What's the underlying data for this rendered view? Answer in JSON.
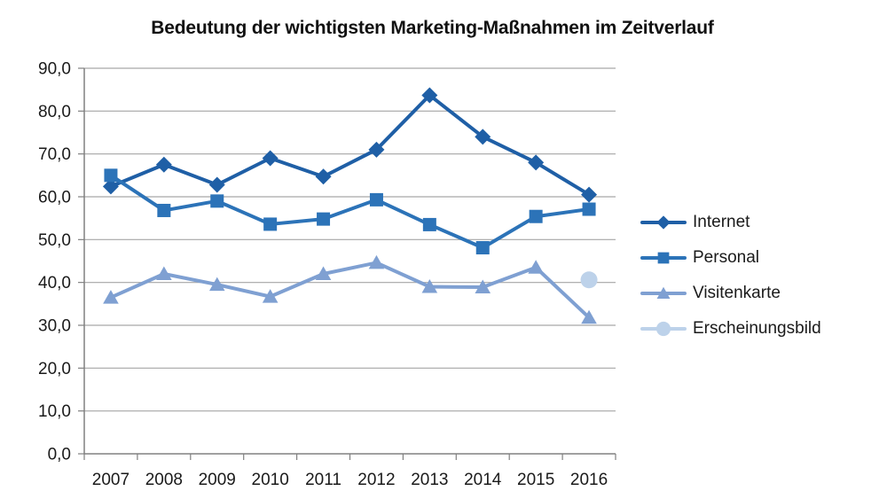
{
  "title": "Bedeutung der wichtigsten Marketing-Maßnahmen im Zeitverlauf",
  "colors": {
    "grid": "#A6A6A6",
    "axis": "#808080",
    "text": "#1a1a1a"
  },
  "chart_data": {
    "type": "line",
    "title": "Bedeutung der wichtigsten Marketing-Maßnahmen im Zeitverlauf",
    "categories": [
      "2007",
      "2008",
      "2009",
      "2010",
      "2011",
      "2012",
      "2013",
      "2014",
      "2015",
      "2016"
    ],
    "series": [
      {
        "name": "Internet",
        "marker": "diamond",
        "color": "#1F5FA6",
        "values": [
          62.4,
          67.5,
          62.8,
          69.0,
          64.7,
          71.0,
          83.7,
          74.0,
          68.0,
          60.5
        ]
      },
      {
        "name": "Personal",
        "marker": "square",
        "color": "#2C73B8",
        "values": [
          65.0,
          56.8,
          59.0,
          53.6,
          54.8,
          59.3,
          53.5,
          48.1,
          55.4,
          57.1
        ]
      },
      {
        "name": "Visitenkarte",
        "marker": "triangle",
        "color": "#7FA0D2",
        "values": [
          36.5,
          42.0,
          39.5,
          36.7,
          42.0,
          44.6,
          39.0,
          38.9,
          43.5,
          31.8
        ]
      },
      {
        "name": "Erscheinungsbild",
        "marker": "circle",
        "color": "#BDD2EA",
        "values": [
          null,
          null,
          null,
          null,
          null,
          null,
          null,
          null,
          null,
          40.6
        ]
      }
    ],
    "xlabel": "",
    "ylabel": "",
    "ylim": [
      0,
      90
    ],
    "ytick_step": 10,
    "ytick_labels": [
      "0,0",
      "10,0",
      "20,0",
      "30,0",
      "40,0",
      "50,0",
      "60,0",
      "70,0",
      "80,0",
      "90,0"
    ],
    "grid": true,
    "legend_position": "right"
  }
}
